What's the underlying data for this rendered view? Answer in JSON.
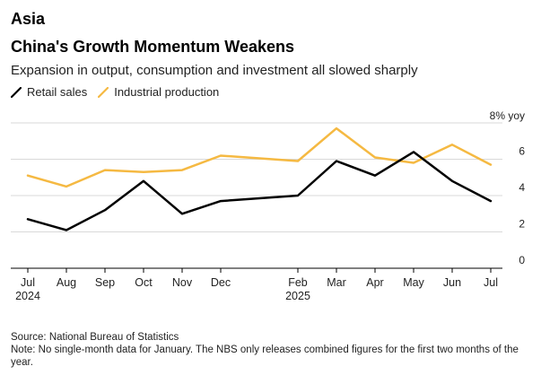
{
  "header": {
    "kicker": "Asia",
    "title": "China's Growth Momentum Weakens",
    "subtitle": "Expansion in output, consumption and investment all slowed sharply"
  },
  "legend": [
    {
      "name": "Retail sales",
      "color": "#000000"
    },
    {
      "name": "Industrial production",
      "color": "#f5b942"
    }
  ],
  "footer": {
    "source": "Source: National Bureau of Statistics",
    "note": "Note: No single-month data for January. The NBS only releases combined figures for the first two months of the year."
  },
  "chart_data": {
    "type": "line",
    "ylabel": "% yoy",
    "ylim": [
      0,
      8
    ],
    "yticks": [
      0,
      2,
      4,
      6,
      8
    ],
    "yticks_labels": [
      "0",
      "2",
      "4",
      "6",
      "8% yoy"
    ],
    "grid": true,
    "x": [
      "2024-07",
      "2024-08",
      "2024-09",
      "2024-10",
      "2024-11",
      "2024-12",
      "2025-02",
      "2025-03",
      "2025-04",
      "2025-05",
      "2025-06",
      "2025-07"
    ],
    "xtick_labels": [
      "Jul",
      "Aug",
      "Sep",
      "Oct",
      "Nov",
      "Dec",
      "Feb",
      "Mar",
      "Apr",
      "May",
      "Jun",
      "Jul"
    ],
    "xtick_sublabels": [
      "2024",
      "",
      "",
      "",
      "",
      "",
      "2025",
      "",
      "",
      "",
      "",
      ""
    ],
    "series": [
      {
        "name": "Retail sales",
        "color": "#000000",
        "values": [
          2.7,
          2.1,
          3.2,
          4.8,
          3.0,
          3.7,
          4.0,
          5.9,
          5.1,
          6.4,
          4.8,
          3.7
        ]
      },
      {
        "name": "Industrial production",
        "color": "#f5b942",
        "values": [
          5.1,
          4.5,
          5.4,
          5.3,
          5.4,
          6.2,
          5.9,
          7.7,
          6.1,
          5.8,
          6.8,
          5.7
        ]
      }
    ]
  }
}
